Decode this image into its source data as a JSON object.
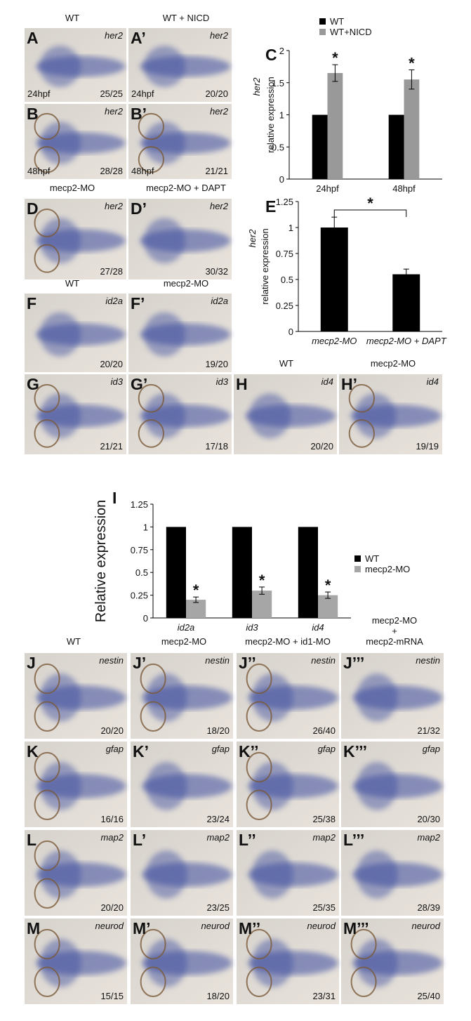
{
  "headers": [
    "WT",
    "WT + NICD",
    "mecp2-MO",
    "mecp2-MO + DAPT",
    "WT",
    "mecp2-MO",
    "WT",
    "mecp2-MO",
    "WT",
    "mecp2-MO",
    "mecp2-MO + id1-MO",
    "mecp2-MO",
    "+",
    "mecp2-mRNA"
  ],
  "panels": [
    {
      "letter": "A",
      "gene": "her2",
      "count": "25/25",
      "stage": "24hpf"
    },
    {
      "letter": "A’",
      "gene": "her2",
      "count": "20/20",
      "stage": "24hpf"
    },
    {
      "letter": "B",
      "gene": "her2",
      "count": "28/28",
      "stage": "48hpf"
    },
    {
      "letter": "B’",
      "gene": "her2",
      "count": "21/21",
      "stage": "48hpf"
    },
    {
      "letter": "D",
      "gene": "her2",
      "count": "27/28"
    },
    {
      "letter": "D’",
      "gene": "her2",
      "count": "30/32"
    },
    {
      "letter": "F",
      "gene": "id2a",
      "count": "20/20"
    },
    {
      "letter": "F’",
      "gene": "id2a",
      "count": "19/20"
    },
    {
      "letter": "G",
      "gene": "id3",
      "count": "21/21"
    },
    {
      "letter": "G’",
      "gene": "id3",
      "count": "17/18"
    },
    {
      "letter": "H",
      "gene": "id4",
      "count": "20/20"
    },
    {
      "letter": "H’",
      "gene": "id4",
      "count": "19/19"
    },
    {
      "letter": "J",
      "gene": "nestin",
      "count": "20/20"
    },
    {
      "letter": "J’",
      "gene": "nestin",
      "count": "18/20"
    },
    {
      "letter": "J’’",
      "gene": "nestin",
      "count": "26/40"
    },
    {
      "letter": "J’’’",
      "gene": "nestin",
      "count": "21/32"
    },
    {
      "letter": "K",
      "gene": "gfap",
      "count": "16/16"
    },
    {
      "letter": "K’",
      "gene": "gfap",
      "count": "23/24"
    },
    {
      "letter": "K’’",
      "gene": "gfap",
      "count": "25/38"
    },
    {
      "letter": "K’’’",
      "gene": "gfap",
      "count": "20/30"
    },
    {
      "letter": "L",
      "gene": "map2",
      "count": "20/20"
    },
    {
      "letter": "L’",
      "gene": "map2",
      "count": "23/25"
    },
    {
      "letter": "L’’",
      "gene": "map2",
      "count": "25/35"
    },
    {
      "letter": "L’’’",
      "gene": "map2",
      "count": "28/39"
    },
    {
      "letter": "M",
      "gene": "neurod",
      "count": "15/15"
    },
    {
      "letter": "M’",
      "gene": "neurod",
      "count": "18/20"
    },
    {
      "letter": "M’’",
      "gene": "neurod",
      "count": "23/31"
    },
    {
      "letter": "M’’’",
      "gene": "neurod",
      "count": "25/40"
    }
  ],
  "chart_data": [
    {
      "type": "bar",
      "panel": "C",
      "y_label": "relative expression",
      "y_label_gene": "her2",
      "categories": [
        "24hpf",
        "48hpf"
      ],
      "series": [
        {
          "name": "WT",
          "color": "#000000",
          "values": [
            1,
            1
          ]
        },
        {
          "name": "WT+NICD",
          "color": "#999999",
          "values": [
            1.65,
            1.55
          ],
          "errors": [
            0.13,
            0.15
          ],
          "markers": [
            "*",
            "*"
          ]
        }
      ],
      "ylim": [
        0,
        2
      ],
      "yticks": [
        0,
        0.5,
        1,
        1.5,
        2
      ],
      "legend": "top"
    },
    {
      "type": "bar",
      "panel": "E",
      "y_label": "relative expression",
      "y_label_gene": "her2",
      "categories": [
        "mecp2-MO",
        "mecp2-MO + DAPT"
      ],
      "series": [
        {
          "color": "#000000",
          "values": [
            1,
            0.55
          ],
          "errors": [
            0.1,
            0.05
          ]
        }
      ],
      "annotation": "*",
      "ylim": [
        0,
        1.25
      ],
      "yticks": [
        0,
        0.25,
        0.5,
        0.75,
        1,
        1.25
      ]
    },
    {
      "type": "bar",
      "panel": "I",
      "y_label": "Relative expression",
      "categories": [
        "id2a",
        "id3",
        "id4"
      ],
      "series": [
        {
          "name": "WT",
          "color": "#000000",
          "values": [
            1,
            1,
            1
          ]
        },
        {
          "name": "mecp2-MO",
          "color": "#a6a6a6",
          "values": [
            0.2,
            0.3,
            0.25
          ],
          "errors": [
            0.03,
            0.04,
            0.035
          ],
          "markers": [
            "*",
            "*",
            "*"
          ]
        }
      ],
      "ylim": [
        0,
        1.25
      ],
      "yticks": [
        0,
        0.25,
        0.5,
        0.75,
        1,
        1.25
      ],
      "legend": "right"
    }
  ]
}
